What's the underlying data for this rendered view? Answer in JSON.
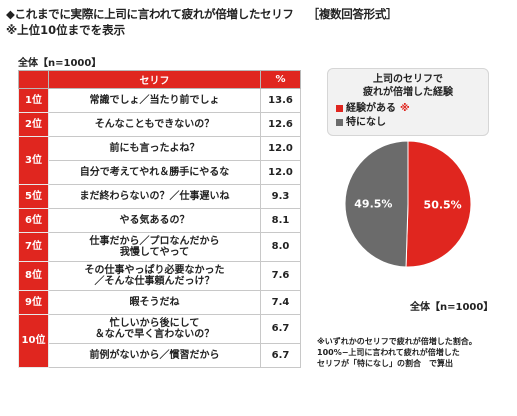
{
  "header": {
    "title": "◆これまでに実際に上司に言われて疲れが倍増したセリフ",
    "tag": "［複数回答形式］",
    "subtitle": "※上位10位までを表示",
    "base_n": "全体【n=1000】"
  },
  "colors": {
    "red": "#e0261f",
    "gray": "#6b6b6b"
  },
  "chart_data": [
    {
      "type": "table",
      "columns": [
        "",
        "セリフ",
        "%"
      ],
      "rows": [
        {
          "rank": "1位",
          "quote": [
            "常識でしょ／当たり前でしょ"
          ],
          "value": 13.6,
          "value_label": "13.6"
        },
        {
          "rank": "2位",
          "quote": [
            "そんなこともできないの？"
          ],
          "value": 12.6,
          "value_label": "12.6"
        },
        {
          "rank": "3位",
          "quote": [
            "前にも言ったよね？"
          ],
          "value": 12.0,
          "value_label": "12.0"
        },
        {
          "rank": "3位",
          "quote": [
            "自分で考えてやれ＆勝手にやるな"
          ],
          "value": 12.0,
          "value_label": "12.0"
        },
        {
          "rank": "5位",
          "quote": [
            "まだ終わらないの？／仕事遅いね"
          ],
          "value": 9.3,
          "value_label": "9.3"
        },
        {
          "rank": "6位",
          "quote": [
            "やる気あるの？"
          ],
          "value": 8.1,
          "value_label": "8.1"
        },
        {
          "rank": "7位",
          "quote": [
            "仕事だから／プロなんだから",
            "我慢してやって"
          ],
          "value": 8.0,
          "value_label": "8.0"
        },
        {
          "rank": "8位",
          "quote": [
            "その仕事やっぱり必要なかった",
            "／そんな仕事頼んだっけ？"
          ],
          "value": 7.6,
          "value_label": "7.6"
        },
        {
          "rank": "9位",
          "quote": [
            "暇そうだね"
          ],
          "value": 7.4,
          "value_label": "7.4"
        },
        {
          "rank": "10位",
          "quote": [
            "忙しいから後にして",
            "＆なんで早く言わないの？"
          ],
          "value": 6.7,
          "value_label": "6.7"
        },
        {
          "rank": "10位",
          "quote": [
            "前例がないから／慣習だから"
          ],
          "value": 6.7,
          "value_label": "6.7"
        }
      ]
    },
    {
      "type": "pie",
      "title": [
        "上司のセリフで",
        "疲れが倍増した経験"
      ],
      "slices": [
        {
          "label": "経験がある",
          "mark": "※",
          "value": 50.5,
          "value_label": "50.5%",
          "color": "#e0261f"
        },
        {
          "label": "特になし",
          "value": 49.5,
          "value_label": "49.5%",
          "color": "#6b6b6b"
        }
      ],
      "base_n": "全体【n=1000】",
      "notes": [
        "※いずれかのセリフで疲れが倍増した割合。",
        "100%−上司に言われて疲れが倍増した",
        "セリフが「特になし」の割合　で算出"
      ]
    }
  ]
}
